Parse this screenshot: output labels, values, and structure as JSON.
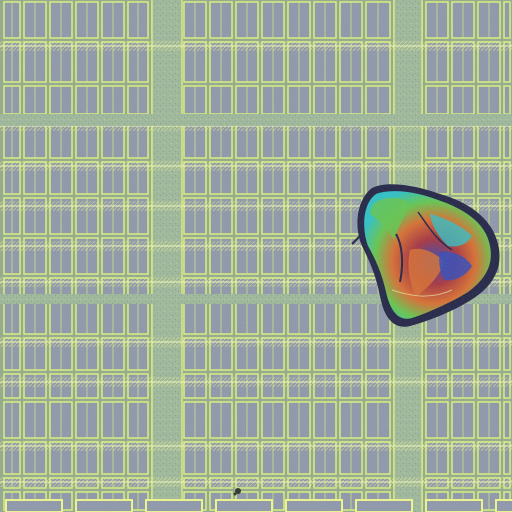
{
  "image": {
    "subject_icons": [
      "micro-grid-pattern",
      "contamination-particle"
    ],
    "colors": {
      "background": "#93a98f",
      "cell": "#8d97aa",
      "cell_border": "#d6ee7c",
      "thin_line": "#eef88a",
      "highlight": "#f2f7b6",
      "bus": "#9eb89a",
      "bus_texture": "#84a48b",
      "particle_blue": "#3049b8",
      "particle_cyan": "#2cc0c5",
      "particle_green": "#62c64d",
      "particle_orange": "#d76d2f",
      "particle_red": "#a7323c",
      "particle_dark": "#1f2144"
    }
  }
}
